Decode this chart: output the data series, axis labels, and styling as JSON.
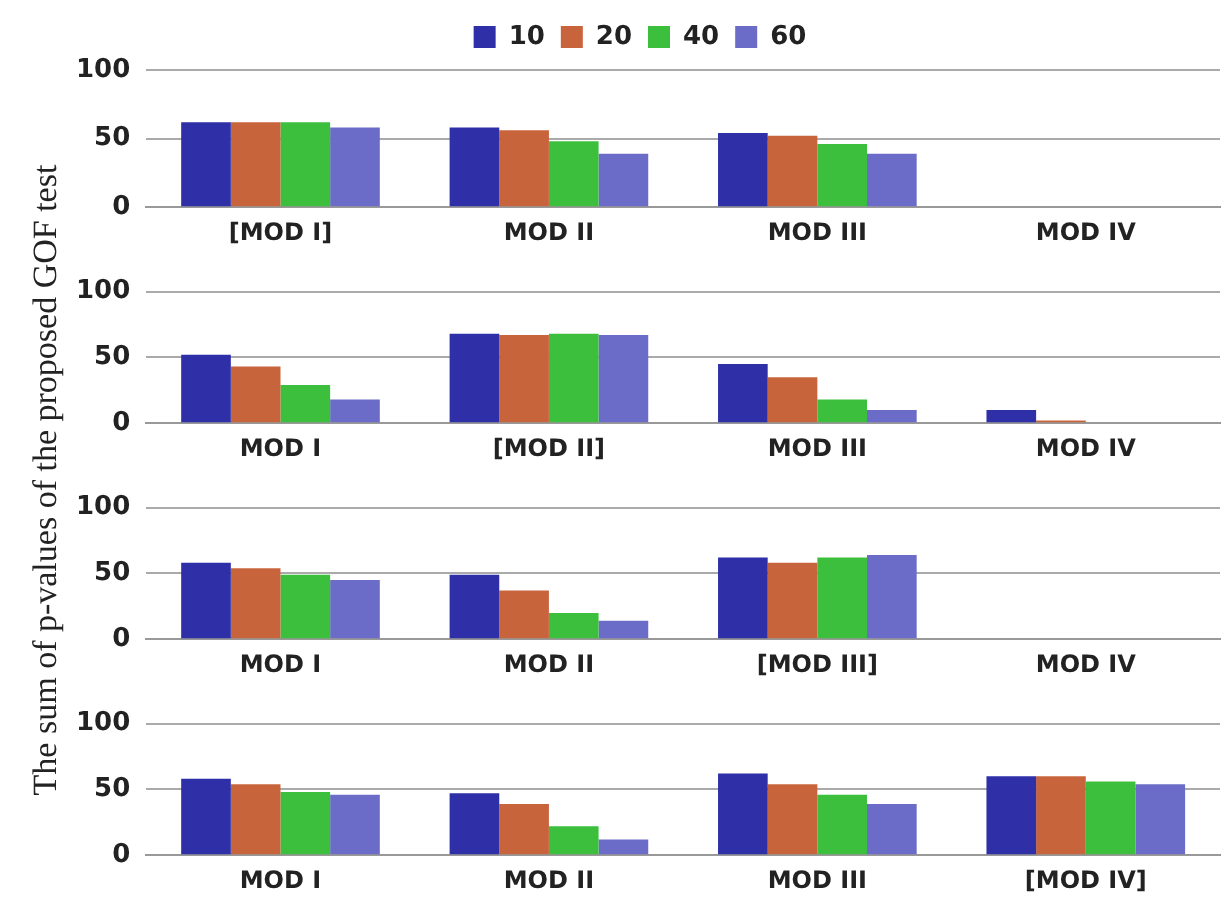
{
  "chart_data": [
    {
      "type": "bar",
      "ylabel": "The sum of p-values of the proposed GOF test",
      "categories": [
        "[MOD I]",
        "MOD II",
        "MOD III",
        "MOD IV"
      ],
      "series": [
        {
          "name": "10",
          "color": "#2f2fa8",
          "values": [
            62,
            58,
            54,
            null
          ]
        },
        {
          "name": "20",
          "color": "#c8643c",
          "values": [
            62,
            56,
            52,
            null
          ]
        },
        {
          "name": "40",
          "color": "#3cbf3c",
          "values": [
            62,
            48,
            46,
            null
          ]
        },
        {
          "name": "60",
          "color": "#6b6bc8",
          "values": [
            58,
            39,
            39,
            null
          ]
        }
      ],
      "ylim": [
        0,
        100
      ],
      "yticks": [
        0,
        50,
        100
      ],
      "grid": "y",
      "legend": "top"
    },
    {
      "type": "bar",
      "categories": [
        "MOD I",
        "[MOD II]",
        "MOD III",
        "MOD IV"
      ],
      "series": [
        {
          "color": "#2f2fa8",
          "values": [
            52,
            68,
            45,
            10
          ]
        },
        {
          "color": "#c8643c",
          "values": [
            43,
            67,
            35,
            2
          ]
        },
        {
          "color": "#3cbf3c",
          "values": [
            29,
            68,
            18,
            null
          ]
        },
        {
          "color": "#6b6bc8",
          "values": [
            18,
            67,
            10,
            null
          ]
        }
      ],
      "ylim": [
        0,
        100
      ],
      "yticks": [
        0,
        50,
        100
      ],
      "grid": "y"
    },
    {
      "type": "bar",
      "categories": [
        "MOD I",
        "MOD II",
        "[MOD III]",
        "MOD IV"
      ],
      "series": [
        {
          "color": "#2f2fa8",
          "values": [
            58,
            49,
            62,
            null
          ]
        },
        {
          "color": "#c8643c",
          "values": [
            54,
            37,
            58,
            null
          ]
        },
        {
          "color": "#3cbf3c",
          "values": [
            49,
            20,
            62,
            null
          ]
        },
        {
          "color": "#6b6bc8",
          "values": [
            45,
            14,
            64,
            null
          ]
        }
      ],
      "ylim": [
        0,
        100
      ],
      "yticks": [
        0,
        50,
        100
      ],
      "grid": "y"
    },
    {
      "type": "bar",
      "categories": [
        "MOD I",
        "MOD II",
        "MOD III",
        "[MOD IV]"
      ],
      "series": [
        {
          "color": "#2f2fa8",
          "values": [
            58,
            47,
            62,
            60
          ]
        },
        {
          "color": "#c8643c",
          "values": [
            54,
            39,
            54,
            60
          ]
        },
        {
          "color": "#3cbf3c",
          "values": [
            48,
            22,
            46,
            56
          ]
        },
        {
          "color": "#6b6bc8",
          "values": [
            46,
            12,
            39,
            54
          ]
        }
      ],
      "ylim": [
        0,
        100
      ],
      "yticks": [
        0,
        50,
        100
      ],
      "grid": "y"
    }
  ]
}
